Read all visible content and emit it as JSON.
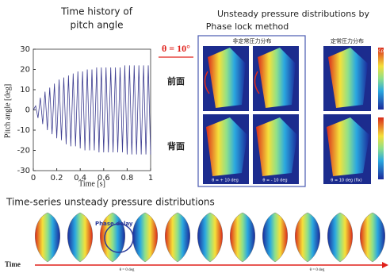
{
  "chart_data": {
    "type": "line",
    "title_lines": [
      "Time history of",
      "pitch angle"
    ],
    "x_label": "Time [s]",
    "y_label": "Pitch angle [deg]",
    "x": [
      0,
      0.02,
      0.04,
      0.06,
      0.08,
      0.1,
      0.12,
      0.14,
      0.16,
      0.18,
      0.2,
      0.22,
      0.24,
      0.26,
      0.28,
      0.3,
      0.32,
      0.34,
      0.36,
      0.38,
      0.4,
      0.42,
      0.44,
      0.46,
      0.48,
      0.5,
      0.52,
      0.54,
      0.56,
      0.58,
      0.6,
      0.62,
      0.64,
      0.66,
      0.68,
      0.7,
      0.72,
      0.74,
      0.76,
      0.78,
      0.8,
      0.82,
      0.84,
      0.86,
      0.88,
      0.9,
      0.92,
      0.94,
      0.96,
      0.98,
      1
    ],
    "values": [
      0,
      2,
      -4,
      6,
      -7,
      9,
      -10,
      11,
      -12,
      13,
      -14,
      15,
      -15,
      16,
      -17,
      17,
      -18,
      18,
      -18,
      19,
      -19,
      19,
      -20,
      20,
      -20,
      20,
      -20,
      21,
      -21,
      21,
      -21,
      21,
      -21,
      21,
      -21,
      21,
      -21,
      21,
      -21,
      22,
      -22,
      22,
      -22,
      22,
      -22,
      22,
      -22,
      22,
      -22,
      22,
      -22
    ],
    "color": "#3c3c90",
    "xlim": [
      0,
      1
    ],
    "ylim": [
      -30,
      30
    ],
    "xticks": [
      0,
      0.2,
      0.4,
      0.6,
      0.8,
      1
    ],
    "yticks": [
      -30,
      -20,
      -10,
      0,
      10,
      20,
      30
    ]
  },
  "phase_lock": {
    "title_lines": [
      "Unsteady pressure distributions by",
      "Phase lock method"
    ],
    "angle": "θ = 10°",
    "front": "前面",
    "back": "背面",
    "unsteady_label": "非定常圧力分布",
    "steady_label": "定常圧力分布",
    "panel_captions": [
      "θ = + 10 deg",
      "θ = - 10 deg",
      "θ = 10 deg (fix)"
    ],
    "colorbar_label": "Cp"
  },
  "time_series": {
    "title": "Time-series unsteady pressure distributions",
    "phase_delay": "Phase delay",
    "time": "Time",
    "captions": [
      "θ = 0 deg",
      "θ = 0 deg"
    ]
  }
}
